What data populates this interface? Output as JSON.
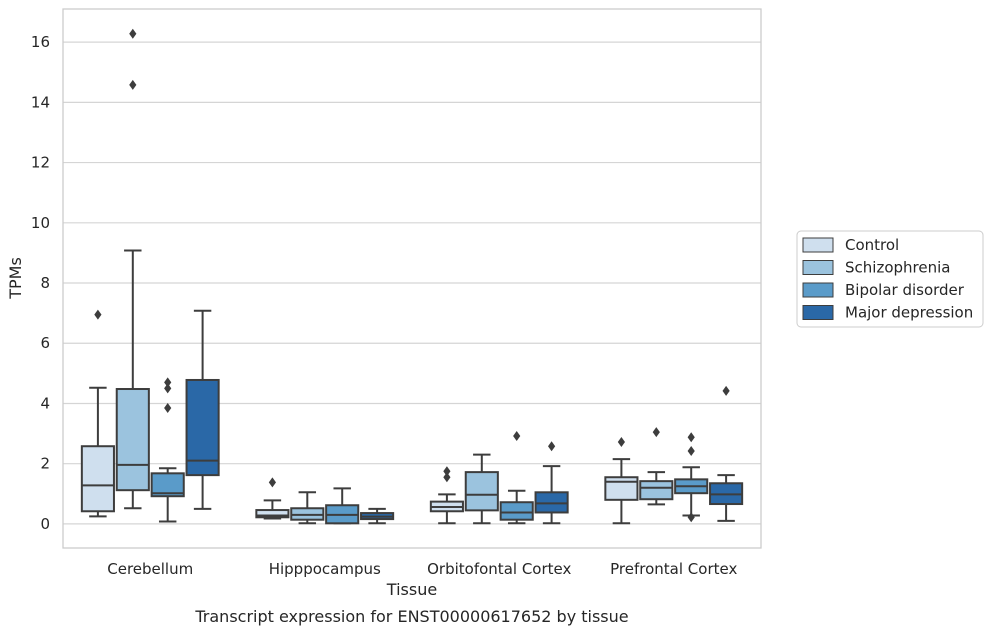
{
  "chart_data": {
    "type": "box",
    "title": "Transcript expression for ENST00000617652 by tissue",
    "xlabel": "Tissue",
    "ylabel": "TPMs",
    "ylim": [
      -0.8,
      17.1
    ],
    "yticks": [
      0,
      2,
      4,
      6,
      8,
      10,
      12,
      14,
      16
    ],
    "grid": "horizontal",
    "legend_position": "right",
    "categories": [
      "Cerebellum",
      "Hipppocampus",
      "Orbitofontal Cortex",
      "Prefrontal Cortex"
    ],
    "series": [
      {
        "name": "Control",
        "color": "#cfdfee",
        "boxes": [
          {
            "whislo": 0.25,
            "q1": 0.42,
            "med": 1.28,
            "q3": 2.58,
            "whishi": 4.52,
            "fliers": [
              6.95
            ]
          },
          {
            "whislo": 0.18,
            "q1": 0.22,
            "med": 0.28,
            "q3": 0.46,
            "whishi": 0.78,
            "fliers": [
              1.38
            ]
          },
          {
            "whislo": 0.02,
            "q1": 0.42,
            "med": 0.56,
            "q3": 0.74,
            "whishi": 0.98,
            "fliers": [
              1.55,
              1.75
            ]
          },
          {
            "whislo": 0.02,
            "q1": 0.8,
            "med": 1.4,
            "q3": 1.55,
            "whishi": 2.15,
            "fliers": [
              2.72
            ]
          }
        ]
      },
      {
        "name": "Schizophrenia",
        "color": "#9bc3de",
        "boxes": [
          {
            "whislo": 0.52,
            "q1": 1.12,
            "med": 1.96,
            "q3": 4.48,
            "whishi": 9.08,
            "fliers": [
              14.58,
              16.28
            ]
          },
          {
            "whislo": 0.02,
            "q1": 0.14,
            "med": 0.3,
            "q3": 0.52,
            "whishi": 1.05,
            "fliers": []
          },
          {
            "whislo": 0.02,
            "q1": 0.45,
            "med": 0.97,
            "q3": 1.72,
            "whishi": 2.3,
            "fliers": []
          },
          {
            "whislo": 0.65,
            "q1": 0.82,
            "med": 1.2,
            "q3": 1.42,
            "whishi": 1.72,
            "fliers": [
              3.05
            ]
          }
        ]
      },
      {
        "name": "Bipolar disorder",
        "color": "#5a9bc9",
        "boxes": [
          {
            "whislo": 0.08,
            "q1": 0.92,
            "med": 1.02,
            "q3": 1.68,
            "whishi": 1.85,
            "fliers": [
              3.85,
              4.5,
              4.7
            ]
          },
          {
            "whislo": 0.02,
            "q1": 0.02,
            "med": 0.3,
            "q3": 0.62,
            "whishi": 1.18,
            "fliers": []
          },
          {
            "whislo": 0.02,
            "q1": 0.14,
            "med": 0.38,
            "q3": 0.72,
            "whishi": 1.1,
            "fliers": [
              2.92
            ]
          },
          {
            "whislo": 0.28,
            "q1": 1.02,
            "med": 1.25,
            "q3": 1.48,
            "whishi": 1.88,
            "fliers": [
              0.22,
              2.42,
              2.88
            ]
          }
        ]
      },
      {
        "name": "Major depression",
        "color": "#2a68a7",
        "boxes": [
          {
            "whislo": 0.5,
            "q1": 1.62,
            "med": 2.1,
            "q3": 4.78,
            "whishi": 7.08,
            "fliers": []
          },
          {
            "whislo": 0.02,
            "q1": 0.16,
            "med": 0.24,
            "q3": 0.36,
            "whishi": 0.5,
            "fliers": []
          },
          {
            "whislo": 0.02,
            "q1": 0.38,
            "med": 0.68,
            "q3": 1.05,
            "whishi": 1.92,
            "fliers": [
              2.58
            ]
          },
          {
            "whislo": 0.1,
            "q1": 0.66,
            "med": 0.98,
            "q3": 1.35,
            "whishi": 1.62,
            "fliers": [
              4.42
            ]
          }
        ]
      }
    ]
  }
}
